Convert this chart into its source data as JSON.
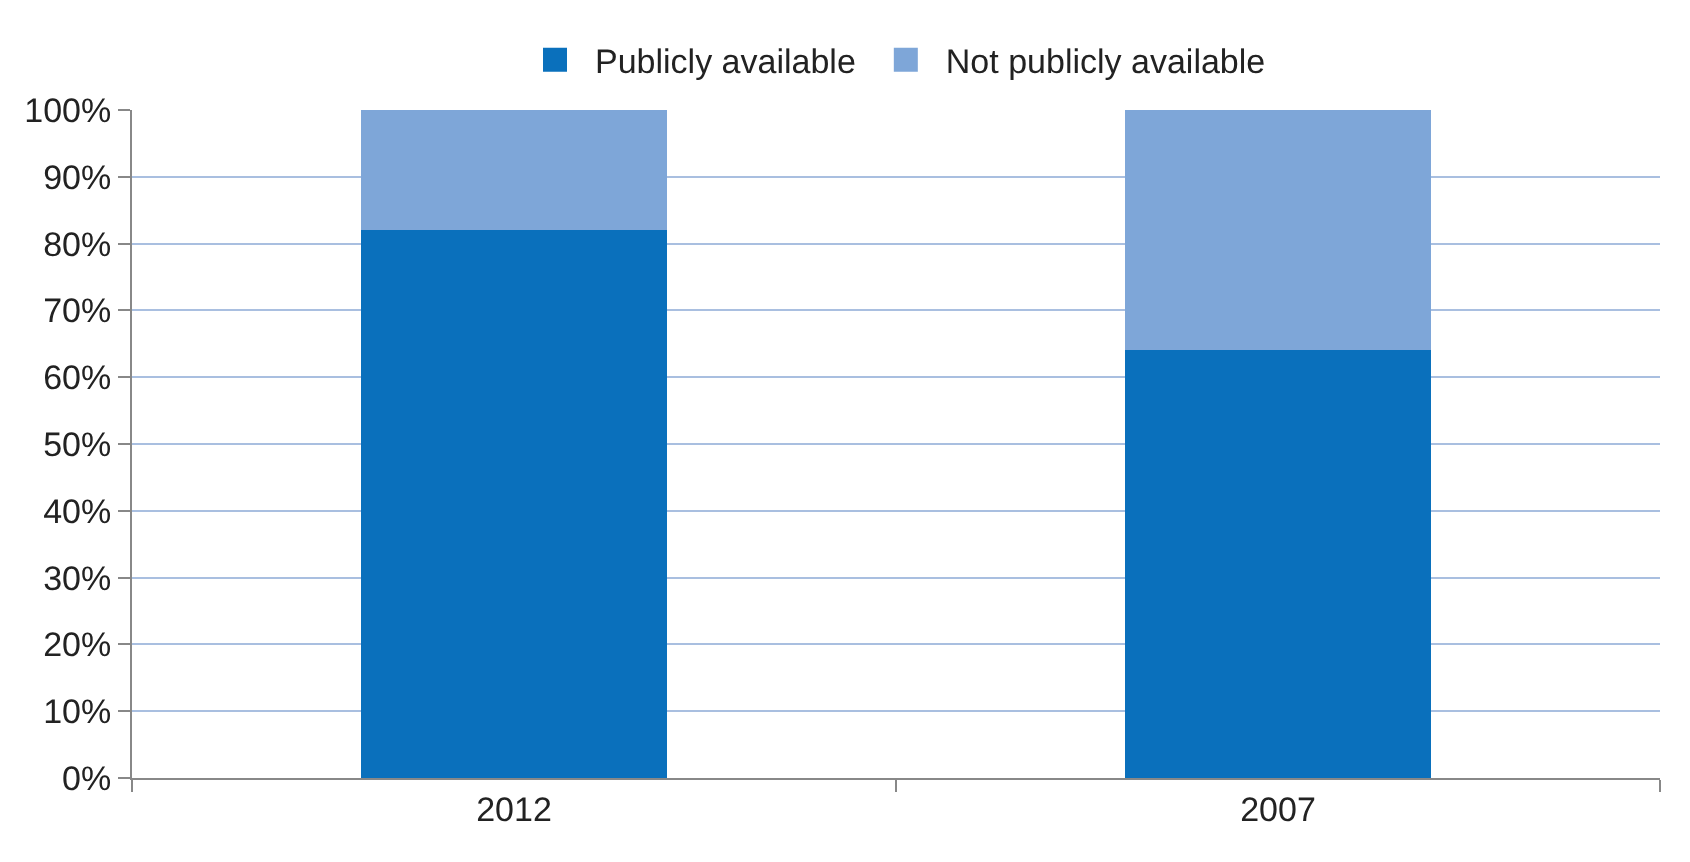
{
  "chart_data": {
    "type": "bar",
    "stacked": true,
    "categories": [
      "2012",
      "2007"
    ],
    "series": [
      {
        "name": "Publicly available",
        "color": "#0a70bc",
        "values": [
          82,
          64
        ]
      },
      {
        "name": "Not publicly available",
        "color": "#7ea6d8",
        "values": [
          18,
          36
        ]
      }
    ],
    "ylim": [
      0,
      100
    ],
    "yticks": [
      {
        "value": 0,
        "label": "0%"
      },
      {
        "value": 10,
        "label": "10%"
      },
      {
        "value": 20,
        "label": "20%"
      },
      {
        "value": 30,
        "label": "30%"
      },
      {
        "value": 40,
        "label": "40%"
      },
      {
        "value": 50,
        "label": "50%"
      },
      {
        "value": 60,
        "label": "60%"
      },
      {
        "value": 70,
        "label": "70%"
      },
      {
        "value": 80,
        "label": "80%"
      },
      {
        "value": 90,
        "label": "90%"
      },
      {
        "value": 100,
        "label": "100%"
      }
    ],
    "grid": "y",
    "legend": "top"
  }
}
